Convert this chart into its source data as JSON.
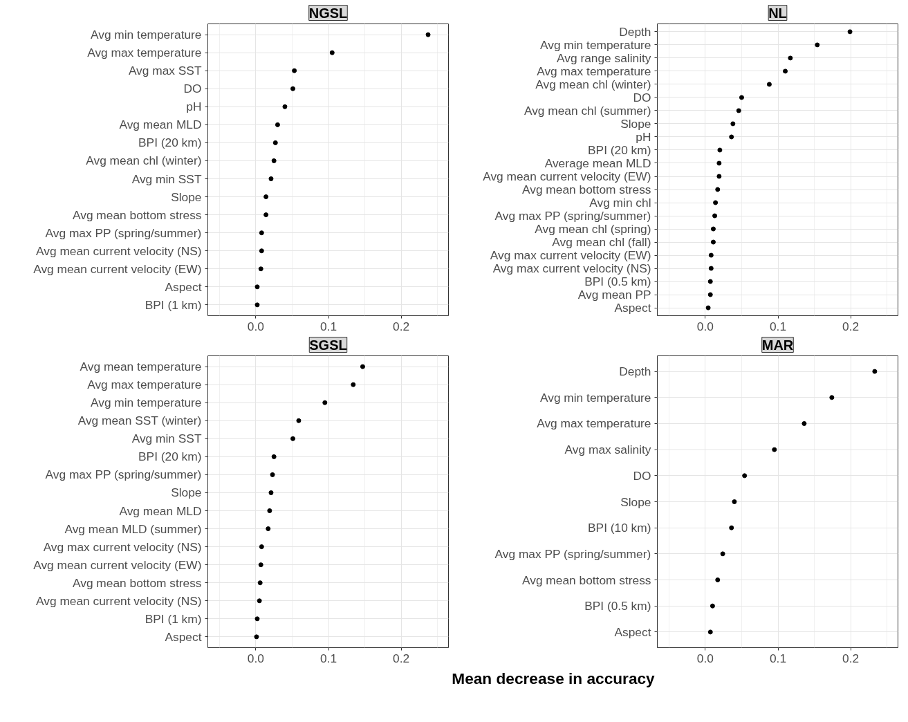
{
  "chart_data": [
    {
      "type": "scatter",
      "orientation": "horizontal",
      "title": "NGSL",
      "marker": "circle",
      "grid": true,
      "color": "#000000",
      "xlim": [
        -0.066,
        0.265
      ],
      "xticks": [
        {
          "value": 0,
          "label": "0.0"
        },
        {
          "value": 0.1,
          "label": "0.1"
        },
        {
          "value": 0.2,
          "label": "0.2"
        }
      ],
      "categories": [
        "Avg min temperature",
        "Avg max temperature",
        "Avg max SST",
        "DO",
        "pH",
        "Avg mean MLD",
        "BPI (20 km)",
        "Avg mean chl (winter)",
        "Avg min SST",
        "Slope",
        "Avg mean bottom stress",
        "Avg max PP (spring/summer)",
        "Avg mean current velocity (NS)",
        "Avg mean current velocity (EW)",
        "Aspect",
        "BPI (1 km)"
      ],
      "values": [
        0.237,
        0.105,
        0.053,
        0.051,
        0.04,
        0.03,
        0.027,
        0.025,
        0.021,
        0.014,
        0.014,
        0.008,
        0.008,
        0.007,
        0.002,
        0.002
      ]
    },
    {
      "type": "scatter",
      "orientation": "horizontal",
      "title": "NL",
      "marker": "circle",
      "grid": true,
      "color": "#000000",
      "xlim": [
        -0.066,
        0.265
      ],
      "xticks": [
        {
          "value": 0,
          "label": "0.0"
        },
        {
          "value": 0.1,
          "label": "0.1"
        },
        {
          "value": 0.2,
          "label": "0.2"
        }
      ],
      "categories": [
        "Depth",
        "Avg min temperature",
        "Avg range salinity",
        "Avg max temperature",
        "Avg mean chl (winter)",
        "DO",
        "Avg mean chl (summer)",
        "Slope",
        "pH",
        "BPI (20 km)",
        "Average mean MLD",
        "Avg mean current velocity (EW)",
        "Avg mean bottom stress",
        "Avg min chl",
        "Avg max PP (spring/summer)",
        "Avg mean chl (spring)",
        "Avg mean chl (fall)",
        "Avg max current velocity (EW)",
        "Avg max current velocity (NS)",
        "BPI (0.5 km)",
        "Avg mean PP",
        "Aspect"
      ],
      "values": [
        0.199,
        0.154,
        0.117,
        0.11,
        0.088,
        0.05,
        0.046,
        0.038,
        0.036,
        0.02,
        0.019,
        0.019,
        0.017,
        0.014,
        0.013,
        0.011,
        0.011,
        0.008,
        0.008,
        0.007,
        0.007,
        0.004
      ]
    },
    {
      "type": "scatter",
      "orientation": "horizontal",
      "title": "SGSL",
      "marker": "circle",
      "grid": true,
      "color": "#000000",
      "xlim": [
        -0.066,
        0.265
      ],
      "xticks": [
        {
          "value": 0,
          "label": "0.0"
        },
        {
          "value": 0.1,
          "label": "0.1"
        },
        {
          "value": 0.2,
          "label": "0.2"
        }
      ],
      "categories": [
        "Avg mean temperature",
        "Avg max temperature",
        "Avg min temperature",
        "Avg mean SST (winter)",
        "Avg min SST",
        "BPI (20 km)",
        "Avg max PP (spring/summer)",
        "Slope",
        "Avg mean MLD",
        "Avg mean MLD (summer)",
        "Avg max current velocity (NS)",
        "Avg mean current velocity (EW)",
        "Avg mean bottom stress",
        "Avg mean current velocity (NS)",
        "BPI (1 km)",
        "Aspect"
      ],
      "values": [
        0.147,
        0.134,
        0.095,
        0.059,
        0.051,
        0.025,
        0.023,
        0.021,
        0.019,
        0.017,
        0.008,
        0.007,
        0.006,
        0.005,
        0.002,
        0.001
      ]
    },
    {
      "type": "scatter",
      "orientation": "horizontal",
      "title": "MAR",
      "marker": "circle",
      "grid": true,
      "color": "#000000",
      "xlim": [
        -0.066,
        0.265
      ],
      "xticks": [
        {
          "value": 0,
          "label": "0.0"
        },
        {
          "value": 0.1,
          "label": "0.1"
        },
        {
          "value": 0.2,
          "label": "0.2"
        }
      ],
      "xlabel": "Mean decrease in accuracy",
      "categories": [
        "Depth",
        "Avg min temperature",
        "Avg max temperature",
        "Avg max salinity",
        "DO",
        "Slope",
        "BPI (10 km)",
        "Avg max PP (spring/summer)",
        "Avg mean bottom stress",
        "BPI (0.5 km)",
        "Aspect"
      ],
      "values": [
        0.233,
        0.174,
        0.136,
        0.095,
        0.054,
        0.04,
        0.036,
        0.024,
        0.017,
        0.01,
        0.007
      ]
    }
  ]
}
